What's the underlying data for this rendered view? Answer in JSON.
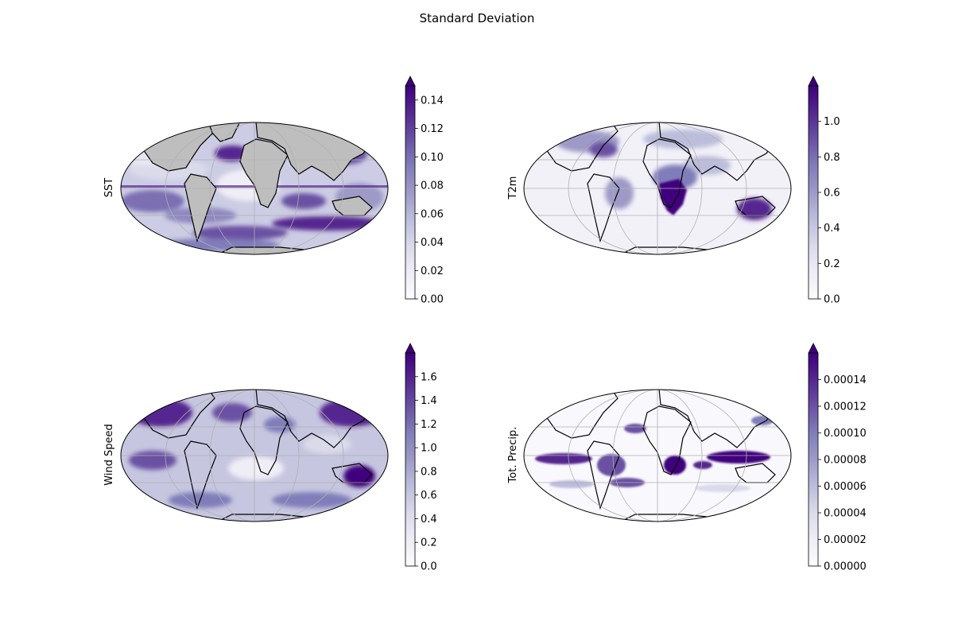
{
  "figure": {
    "title": "Standard Deviation"
  },
  "colors": {
    "colormap": [
      "#fcfbfd",
      "#efedf5",
      "#dadaeb",
      "#bcbddc",
      "#9e9ac8",
      "#807dba",
      "#6a51a3",
      "#54278f",
      "#3f007d"
    ],
    "land": "#bebebe",
    "coastline": "#000000",
    "gridline": "#b0b0b0"
  },
  "panels": [
    {
      "ylabel": "SST",
      "land_masked": true,
      "colorbar": {
        "min": 0,
        "max": 0.15,
        "extend": "max",
        "ticks": [
          "0.00",
          "0.02",
          "0.04",
          "0.06",
          "0.08",
          "0.10",
          "0.12",
          "0.14"
        ],
        "tick_values": [
          0,
          0.02,
          0.04,
          0.06,
          0.08,
          0.1,
          0.12,
          0.14
        ]
      }
    },
    {
      "ylabel": "T2m",
      "land_masked": false,
      "colorbar": {
        "min": 0,
        "max": 1.2,
        "extend": "max",
        "ticks": [
          "0.0",
          "0.2",
          "0.4",
          "0.6",
          "0.8",
          "1.0"
        ],
        "tick_values": [
          0,
          0.2,
          0.4,
          0.6,
          0.8,
          1.0
        ]
      }
    },
    {
      "ylabel": "Wind Speed",
      "land_masked": false,
      "colorbar": {
        "min": 0,
        "max": 1.8,
        "extend": "max",
        "ticks": [
          "0.0",
          "0.2",
          "0.4",
          "0.6",
          "0.8",
          "1.0",
          "1.2",
          "1.4",
          "1.6"
        ],
        "tick_values": [
          0,
          0.2,
          0.4,
          0.6,
          0.8,
          1.0,
          1.2,
          1.4,
          1.6
        ]
      }
    },
    {
      "ylabel": "Tot. Precip.",
      "land_masked": false,
      "colorbar": {
        "min": 0,
        "max": 0.00016,
        "extend": "max",
        "ticks": [
          "0.00000",
          "0.00002",
          "0.00004",
          "0.00006",
          "0.00008",
          "0.00010",
          "0.00012",
          "0.00014"
        ],
        "tick_values": [
          0,
          2e-05,
          4e-05,
          6e-05,
          8e-05,
          0.0001,
          0.00012,
          0.00014
        ]
      }
    }
  ]
}
